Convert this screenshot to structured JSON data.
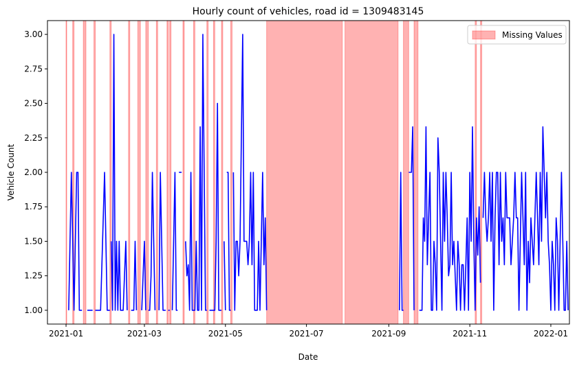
{
  "chart_data": {
    "type": "line",
    "title": "Hourly count of vehicles, road id = 1309483145",
    "xlabel": "Date",
    "ylabel": "Vehicle Count",
    "xlim": [
      "2020-12-18",
      "2022-01-15"
    ],
    "ylim": [
      0.9,
      3.1
    ],
    "x_ticks": [
      "2021-01",
      "2021-03",
      "2021-05",
      "2021-07",
      "2021-09",
      "2021-11",
      "2022-01"
    ],
    "y_ticks": [
      "1.00",
      "1.25",
      "1.50",
      "1.75",
      "2.00",
      "2.25",
      "2.50",
      "2.75",
      "3.00"
    ],
    "grid": false,
    "legend_position": "top-right",
    "legend": [
      "Missing Values"
    ],
    "series": [
      {
        "color": "#0000ff",
        "segments": [
          [
            [
              "2021-01-03",
              1
            ],
            [
              "2021-01-05",
              2
            ],
            [
              "2021-01-07",
              1
            ],
            [
              "2021-01-09",
              2
            ],
            [
              "2021-01-10",
              2
            ],
            [
              "2021-01-11",
              1
            ],
            [
              "2021-01-13",
              1
            ]
          ],
          [
            [
              "2021-01-17",
              1
            ],
            [
              "2021-01-19",
              1
            ],
            [
              "2021-01-21",
              1
            ]
          ],
          [
            [
              "2021-01-23",
              1
            ],
            [
              "2021-01-27",
              1
            ],
            [
              "2021-01-30",
              2
            ],
            [
              "2021-02-01",
              1
            ],
            [
              "2021-02-03",
              1
            ]
          ],
          [
            [
              "2021-02-04",
              1.5
            ],
            [
              "2021-02-05",
              1
            ],
            [
              "2021-02-06",
              3
            ],
            [
              "2021-02-07",
              1
            ],
            [
              "2021-02-08",
              1.5
            ],
            [
              "2021-02-09",
              1
            ],
            [
              "2021-02-10",
              1.5
            ],
            [
              "2021-02-11",
              1
            ],
            [
              "2021-02-12",
              1
            ],
            [
              "2021-02-13",
              1
            ],
            [
              "2021-02-15",
              1.5
            ],
            [
              "2021-02-16",
              1
            ]
          ],
          [
            [
              "2021-02-19",
              1
            ],
            [
              "2021-02-21",
              1
            ],
            [
              "2021-02-22",
              1.5
            ],
            [
              "2021-02-23",
              1
            ]
          ],
          [
            [
              "2021-02-27",
              1
            ],
            [
              "2021-03-01",
              1.5
            ],
            [
              "2021-03-02",
              1
            ]
          ],
          [
            [
              "2021-03-04",
              1
            ],
            [
              "2021-03-05",
              1
            ],
            [
              "2021-03-06",
              1.25
            ],
            [
              "2021-03-07",
              2
            ],
            [
              "2021-03-09",
              1
            ]
          ],
          [
            [
              "2021-03-12",
              1
            ],
            [
              "2021-03-13",
              2
            ],
            [
              "2021-03-15",
              1
            ],
            [
              "2021-03-17",
              1
            ]
          ],
          [
            [
              "2021-03-19",
              1
            ],
            [
              "2021-03-20",
              1
            ]
          ],
          [
            [
              "2021-03-22",
              1
            ],
            [
              "2021-03-23",
              1.5
            ],
            [
              "2021-03-24",
              2
            ],
            [
              "2021-03-25",
              1
            ],
            [
              "2021-03-26",
              1
            ]
          ],
          [
            [
              "2021-03-27",
              2
            ],
            [
              "2021-03-29",
              2
            ]
          ],
          [
            [
              "2021-04-01",
              1.5
            ],
            [
              "2021-04-02",
              1.25
            ],
            [
              "2021-04-03",
              1.33
            ],
            [
              "2021-04-04",
              1
            ],
            [
              "2021-04-05",
              2
            ],
            [
              "2021-04-06",
              1
            ],
            [
              "2021-04-08",
              1
            ],
            [
              "2021-04-09",
              1.5
            ],
            [
              "2021-04-10",
              1
            ],
            [
              "2021-04-11",
              1
            ],
            [
              "2021-04-12",
              2.33
            ],
            [
              "2021-04-13",
              1
            ],
            [
              "2021-04-14",
              3
            ],
            [
              "2021-04-15",
              2
            ],
            [
              "2021-04-16",
              1
            ],
            [
              "2021-04-17",
              1
            ]
          ],
          [
            [
              "2021-04-19",
              1
            ],
            [
              "2021-04-21",
              1
            ],
            [
              "2021-04-23",
              1
            ],
            [
              "2021-04-24",
              1.5
            ],
            [
              "2021-04-25",
              2.5
            ],
            [
              "2021-04-26",
              1
            ],
            [
              "2021-04-28",
              1
            ]
          ],
          [
            [
              "2021-04-30",
              1.5
            ],
            [
              "2021-05-01",
              1
            ]
          ],
          [
            [
              "2021-05-02",
              2
            ],
            [
              "2021-05-03",
              2
            ],
            [
              "2021-05-04",
              1
            ],
            [
              "2021-05-05",
              1
            ]
          ],
          [
            [
              "2021-05-07",
              2
            ],
            [
              "2021-05-08",
              1
            ],
            [
              "2021-05-09",
              1.5
            ],
            [
              "2021-05-10",
              1.5
            ],
            [
              "2021-05-11",
              1.25
            ],
            [
              "2021-05-12",
              1.5
            ],
            [
              "2021-05-14",
              3
            ],
            [
              "2021-05-15",
              1.5
            ],
            [
              "2021-05-17",
              1.5
            ],
            [
              "2021-05-18",
              1.33
            ],
            [
              "2021-05-19",
              1.5
            ],
            [
              "2021-05-20",
              2
            ],
            [
              "2021-05-21",
              1.33
            ],
            [
              "2021-05-22",
              2
            ],
            [
              "2021-05-23",
              1
            ],
            [
              "2021-05-25",
              1
            ],
            [
              "2021-05-26",
              1.5
            ],
            [
              "2021-05-27",
              1
            ],
            [
              "2021-05-29",
              2
            ],
            [
              "2021-05-30",
              1.33
            ],
            [
              "2021-05-31",
              1.67
            ],
            [
              "2021-06-01",
              1
            ]
          ],
          [
            [
              "2021-09-09",
              1
            ],
            [
              "2021-09-10",
              2
            ],
            [
              "2021-09-11",
              1
            ],
            [
              "2021-09-12",
              1
            ]
          ],
          [
            [
              "2021-09-16",
              2
            ],
            [
              "2021-09-17",
              2
            ],
            [
              "2021-09-18",
              2
            ],
            [
              "2021-09-19",
              2.33
            ],
            [
              "2021-09-20",
              1
            ]
          ],
          [
            [
              "2021-09-24",
              1
            ],
            [
              "2021-09-25",
              1
            ],
            [
              "2021-09-26",
              1
            ],
            [
              "2021-09-27",
              1.67
            ],
            [
              "2021-09-28",
              1.5
            ],
            [
              "2021-09-29",
              2.33
            ],
            [
              "2021-09-30",
              1.33
            ],
            [
              "2021-10-01",
              1.67
            ],
            [
              "2021-10-02",
              2
            ],
            [
              "2021-10-03",
              1
            ],
            [
              "2021-10-04",
              1
            ],
            [
              "2021-10-05",
              1.5
            ],
            [
              "2021-10-06",
              1.33
            ],
            [
              "2021-10-07",
              1
            ],
            [
              "2021-10-08",
              2.25
            ],
            [
              "2021-10-09",
              2
            ],
            [
              "2021-10-10",
              1.5
            ],
            [
              "2021-10-11",
              1
            ],
            [
              "2021-10-12",
              2
            ],
            [
              "2021-10-13",
              1.5
            ],
            [
              "2021-10-14",
              2
            ],
            [
              "2021-10-15",
              1.67
            ],
            [
              "2021-10-16",
              1.25
            ],
            [
              "2021-10-17",
              1.33
            ],
            [
              "2021-10-18",
              2
            ],
            [
              "2021-10-19",
              1.33
            ],
            [
              "2021-10-20",
              1.5
            ],
            [
              "2021-10-21",
              1.25
            ],
            [
              "2021-10-22",
              1
            ],
            [
              "2021-10-23",
              1.5
            ],
            [
              "2021-10-24",
              1.33
            ],
            [
              "2021-10-25",
              1
            ],
            [
              "2021-10-26",
              1.33
            ],
            [
              "2021-10-27",
              1.33
            ],
            [
              "2021-10-28",
              1
            ],
            [
              "2021-10-29",
              1.33
            ],
            [
              "2021-10-30",
              1.67
            ],
            [
              "2021-10-31",
              1
            ],
            [
              "2021-11-01",
              2
            ],
            [
              "2021-11-02",
              1.5
            ],
            [
              "2021-11-03",
              2.33
            ],
            [
              "2021-11-04",
              1.5
            ],
            [
              "2021-11-05",
              1
            ],
            [
              "2021-11-06",
              1.67
            ],
            [
              "2021-11-07",
              1.4
            ],
            [
              "2021-11-08",
              1.75
            ],
            [
              "2021-11-09",
              1.2
            ]
          ],
          [
            [
              "2021-11-11",
              1.67
            ],
            [
              "2021-11-12",
              2
            ],
            [
              "2021-11-13",
              1.67
            ],
            [
              "2021-11-14",
              1.5
            ],
            [
              "2021-11-15",
              1.67
            ],
            [
              "2021-11-16",
              2
            ],
            [
              "2021-11-17",
              1.5
            ],
            [
              "2021-11-18",
              2
            ],
            [
              "2021-11-19",
              1
            ],
            [
              "2021-11-20",
              1.67
            ],
            [
              "2021-11-21",
              2
            ],
            [
              "2021-11-22",
              2
            ],
            [
              "2021-11-23",
              1.33
            ],
            [
              "2021-11-24",
              2
            ],
            [
              "2021-11-25",
              1.5
            ],
            [
              "2021-11-26",
              1.67
            ],
            [
              "2021-11-27",
              1.33
            ],
            [
              "2021-11-28",
              2
            ],
            [
              "2021-11-29",
              1.67
            ],
            [
              "2021-11-30",
              1.67
            ],
            [
              "2021-12-01",
              1.67
            ],
            [
              "2021-12-02",
              1.33
            ],
            [
              "2021-12-03",
              1.5
            ],
            [
              "2021-12-04",
              1.67
            ],
            [
              "2021-12-05",
              2
            ],
            [
              "2021-12-06",
              1.67
            ],
            [
              "2021-12-07",
              1.67
            ],
            [
              "2021-12-08",
              1
            ],
            [
              "2021-12-09",
              1.5
            ],
            [
              "2021-12-10",
              2
            ],
            [
              "2021-12-11",
              1.67
            ],
            [
              "2021-12-12",
              1.33
            ],
            [
              "2021-12-13",
              2
            ],
            [
              "2021-12-14",
              1
            ],
            [
              "2021-12-15",
              1.5
            ],
            [
              "2021-12-16",
              1.2
            ],
            [
              "2021-12-17",
              1.67
            ],
            [
              "2021-12-18",
              1.5
            ],
            [
              "2021-12-19",
              1.33
            ],
            [
              "2021-12-20",
              1.67
            ],
            [
              "2021-12-21",
              2
            ],
            [
              "2021-12-22",
              1.67
            ],
            [
              "2021-12-23",
              1.33
            ],
            [
              "2021-12-24",
              2
            ],
            [
              "2021-12-25",
              1.5
            ],
            [
              "2021-12-26",
              2.33
            ],
            [
              "2021-12-27",
              2
            ],
            [
              "2021-12-28",
              1.67
            ],
            [
              "2021-12-29",
              2
            ],
            [
              "2021-12-30",
              1.5
            ],
            [
              "2021-12-31",
              1.33
            ],
            [
              "2022-01-01",
              1
            ],
            [
              "2022-01-02",
              1.5
            ],
            [
              "2022-01-03",
              1.33
            ],
            [
              "2022-01-04",
              1
            ],
            [
              "2022-01-05",
              1.67
            ],
            [
              "2022-01-06",
              1.5
            ],
            [
              "2022-01-07",
              1
            ],
            [
              "2022-01-08",
              1.5
            ],
            [
              "2022-01-09",
              2
            ],
            [
              "2022-01-10",
              1.5
            ],
            [
              "2022-01-11",
              1
            ],
            [
              "2022-01-12",
              1
            ],
            [
              "2022-01-13",
              1.5
            ],
            [
              "2022-01-14",
              1
            ]
          ]
        ]
      }
    ],
    "missing_ranges": [
      [
        "2021-01-01",
        "2021-01-01"
      ],
      [
        "2021-01-06",
        "2021-01-07"
      ],
      [
        "2021-01-14",
        "2021-01-16"
      ],
      [
        "2021-01-22",
        "2021-01-23"
      ],
      [
        "2021-02-03",
        "2021-02-04"
      ],
      [
        "2021-02-17",
        "2021-02-18"
      ],
      [
        "2021-02-24",
        "2021-02-26"
      ],
      [
        "2021-03-02",
        "2021-03-04"
      ],
      [
        "2021-03-10",
        "2021-03-11"
      ],
      [
        "2021-03-18",
        "2021-03-19"
      ],
      [
        "2021-03-20",
        "2021-03-21"
      ],
      [
        "2021-03-30",
        "2021-03-31"
      ],
      [
        "2021-04-07",
        "2021-04-08"
      ],
      [
        "2021-04-17",
        "2021-04-18"
      ],
      [
        "2021-04-22",
        "2021-04-23"
      ],
      [
        "2021-04-28",
        "2021-04-29"
      ],
      [
        "2021-05-05",
        "2021-05-06"
      ],
      [
        "2021-06-01",
        "2021-07-28"
      ],
      [
        "2021-07-30",
        "2021-09-08"
      ],
      [
        "2021-09-12",
        "2021-09-16"
      ],
      [
        "2021-09-20",
        "2021-09-23"
      ],
      [
        "2021-11-05",
        "2021-11-06"
      ],
      [
        "2021-11-09",
        "2021-11-10"
      ]
    ],
    "missing_color": "#ff0000",
    "missing_opacity": 0.3
  }
}
